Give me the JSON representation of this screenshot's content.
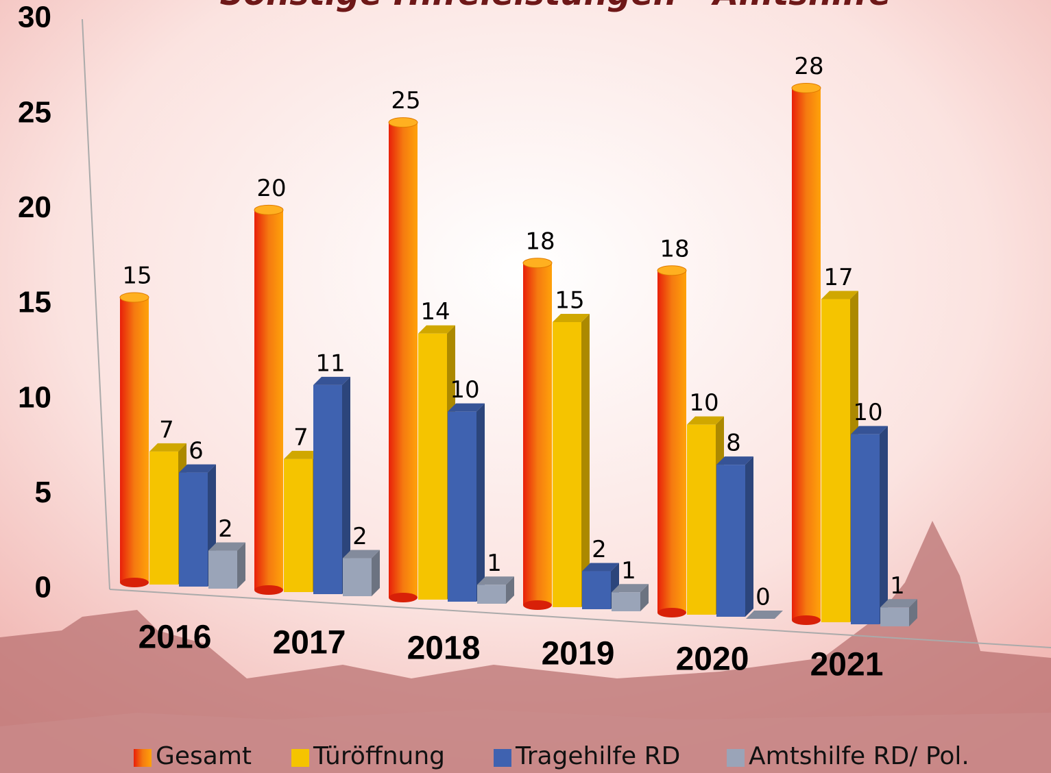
{
  "chart_data": {
    "type": "bar3d",
    "title": "Sonstige Hilfeleistungen - Amtshilfe",
    "categories": [
      "2016",
      "2017",
      "2018",
      "2019",
      "2020",
      "2021"
    ],
    "series": [
      {
        "name": "Gesamt",
        "color": "#f07800",
        "values": [
          15,
          20,
          25,
          18,
          18,
          28
        ]
      },
      {
        "name": "Türöffnung",
        "color": "#f5c400",
        "values": [
          7,
          7,
          14,
          15,
          10,
          17
        ]
      },
      {
        "name": "Tragehilfe RD",
        "color": "#3f62b0",
        "values": [
          6,
          11,
          10,
          2,
          8,
          10
        ]
      },
      {
        "name": "Amtshilfe RD/ Pol.",
        "color": "#9aa4b8",
        "values": [
          2,
          2,
          1,
          1,
          0,
          1
        ]
      }
    ],
    "ylim": [
      0,
      30
    ],
    "yticks": [
      0,
      5,
      10,
      15,
      20,
      25,
      30
    ],
    "legend": "bottom"
  }
}
